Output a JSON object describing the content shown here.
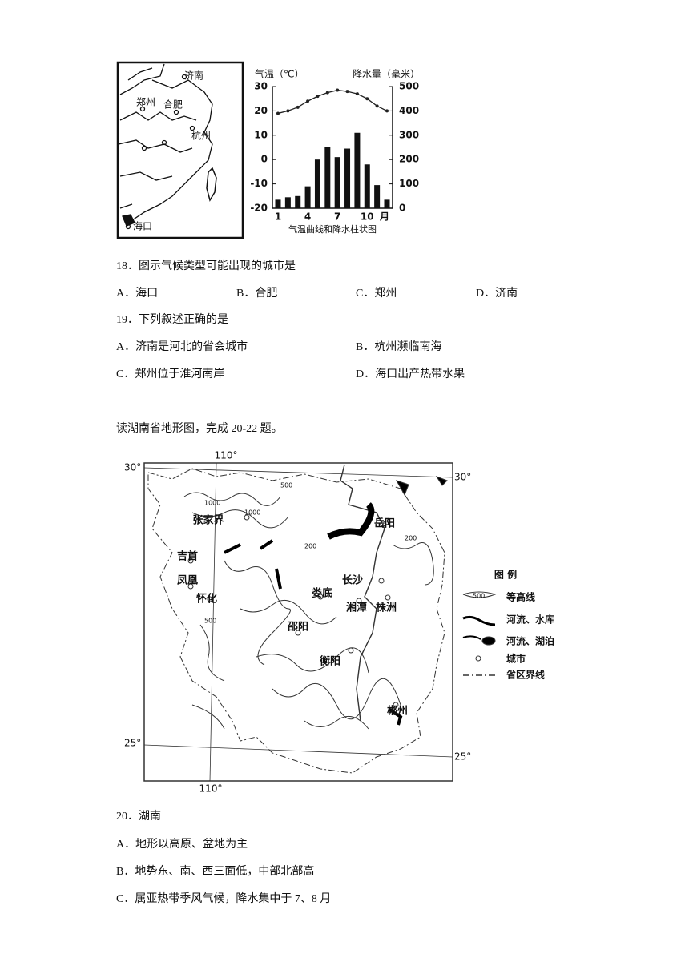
{
  "figure1": {
    "map_labels": {
      "jinan": "济南",
      "zhengzhou": "郑州",
      "hefei": "合肥",
      "hangzhou": "杭州",
      "haikou": "海口"
    },
    "chart": {
      "type": "combo",
      "left_axis_title": "气温（℃）",
      "right_axis_title": "降水量（毫米）",
      "caption": "气温曲线和降水柱状图",
      "categories": [
        "1",
        null,
        null,
        "4",
        null,
        null,
        "7",
        null,
        null,
        "10",
        null,
        null
      ],
      "x_unit": "月",
      "ylim": [
        -20,
        30
      ],
      "yticks": [
        -20,
        -10,
        0,
        10,
        20,
        30
      ],
      "y2lim": [
        0,
        500
      ],
      "y2ticks": [
        0,
        100,
        200,
        300,
        400,
        500
      ],
      "series": [
        {
          "name": "气温",
          "color": "#222222",
          "values": [
            19,
            20,
            21.5,
            24,
            26,
            27.5,
            28.5,
            28,
            27,
            25,
            22,
            20
          ]
        },
        {
          "name": "降水量",
          "color": "#111111",
          "axis": "y2",
          "values": [
            35,
            45,
            50,
            90,
            200,
            250,
            210,
            245,
            310,
            180,
            95,
            35
          ]
        }
      ]
    }
  },
  "questions": {
    "q18": {
      "stem": "18．图示气候类型可能出现的城市是",
      "options": [
        "A．海口",
        "B．合肥",
        "C．郑州",
        "D．济南"
      ]
    },
    "q19": {
      "stem": "19．下列叙述正确的是",
      "options": [
        "A．济南是河北的省会城市",
        "B．杭州濒临南海",
        "C．郑州位于淮河南岸",
        "D．海口出产热带水果"
      ]
    },
    "intro": "读湖南省地形图，完成 20-22 题。",
    "q20": {
      "stem": "20．湖南",
      "options": [
        "A．地形以高原、盆地为主",
        "B．地势东、南、西三面低，中部北部高",
        "C．属亚热带季风气候，降水集中于 7、8 月"
      ]
    }
  },
  "figure2": {
    "coords": {
      "lon_top": "110°",
      "lon_bottom": "110°",
      "lat30_left": "30°",
      "lat30_right": "30°",
      "lat25_left": "25°",
      "lat25_right": "25°"
    },
    "cities": [
      "张家界",
      "岳阳",
      "吉首",
      "凤凰",
      "怀化",
      "长沙",
      "娄底",
      "湘潭",
      "株洲",
      "邵阳",
      "衡阳",
      "郴州"
    ],
    "contour_labels": [
      "500",
      "1000",
      "200",
      "200",
      "500",
      "1000"
    ],
    "legend": {
      "title": "图 例",
      "sample": "500",
      "items": [
        "等高线",
        "河流、水库",
        "河流、湖泊",
        "城市",
        "省区界线"
      ]
    }
  }
}
